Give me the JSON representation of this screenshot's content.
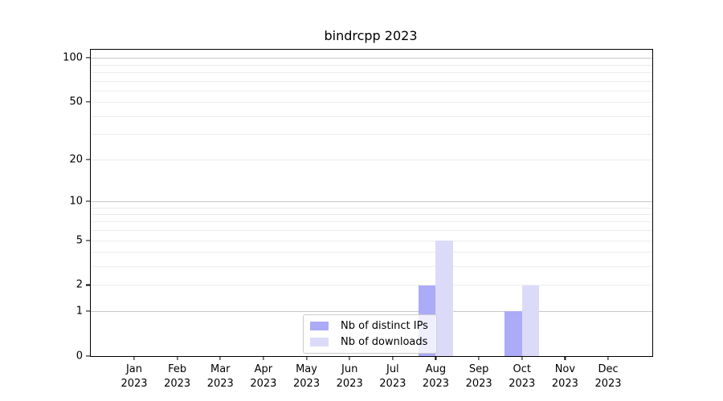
{
  "chart_data": {
    "type": "bar",
    "title": "bindrcpp 2023",
    "categories": [
      "Jan",
      "Feb",
      "Mar",
      "Apr",
      "May",
      "Jun",
      "Jul",
      "Aug",
      "Sep",
      "Oct",
      "Nov",
      "Dec"
    ],
    "x_year": "2023",
    "series": [
      {
        "name": "Nb of distinct IPs",
        "color": "#ababf7",
        "values": [
          0,
          0,
          0,
          0,
          0,
          0,
          0,
          2,
          0,
          1,
          0,
          0
        ]
      },
      {
        "name": "Nb of downloads",
        "color": "#dbdbf9",
        "values": [
          0,
          0,
          0,
          0,
          0,
          0,
          0,
          5,
          0,
          2,
          0,
          0
        ]
      }
    ],
    "yscale": "log1p",
    "ylim": [
      0,
      115
    ],
    "y_ticks": [
      0,
      1,
      2,
      5,
      10,
      20,
      50,
      100
    ],
    "grid": {
      "major": [
        1,
        10,
        100
      ],
      "minor": [
        2,
        3,
        4,
        5,
        6,
        7,
        8,
        9,
        20,
        30,
        40,
        50,
        60,
        70,
        80,
        90
      ]
    },
    "legend": {
      "position": "lower center"
    },
    "colors": {
      "major_grid": "#c6c6c6",
      "minor_grid": "#ececec",
      "axis": "#000000",
      "background": "#ffffff"
    }
  }
}
